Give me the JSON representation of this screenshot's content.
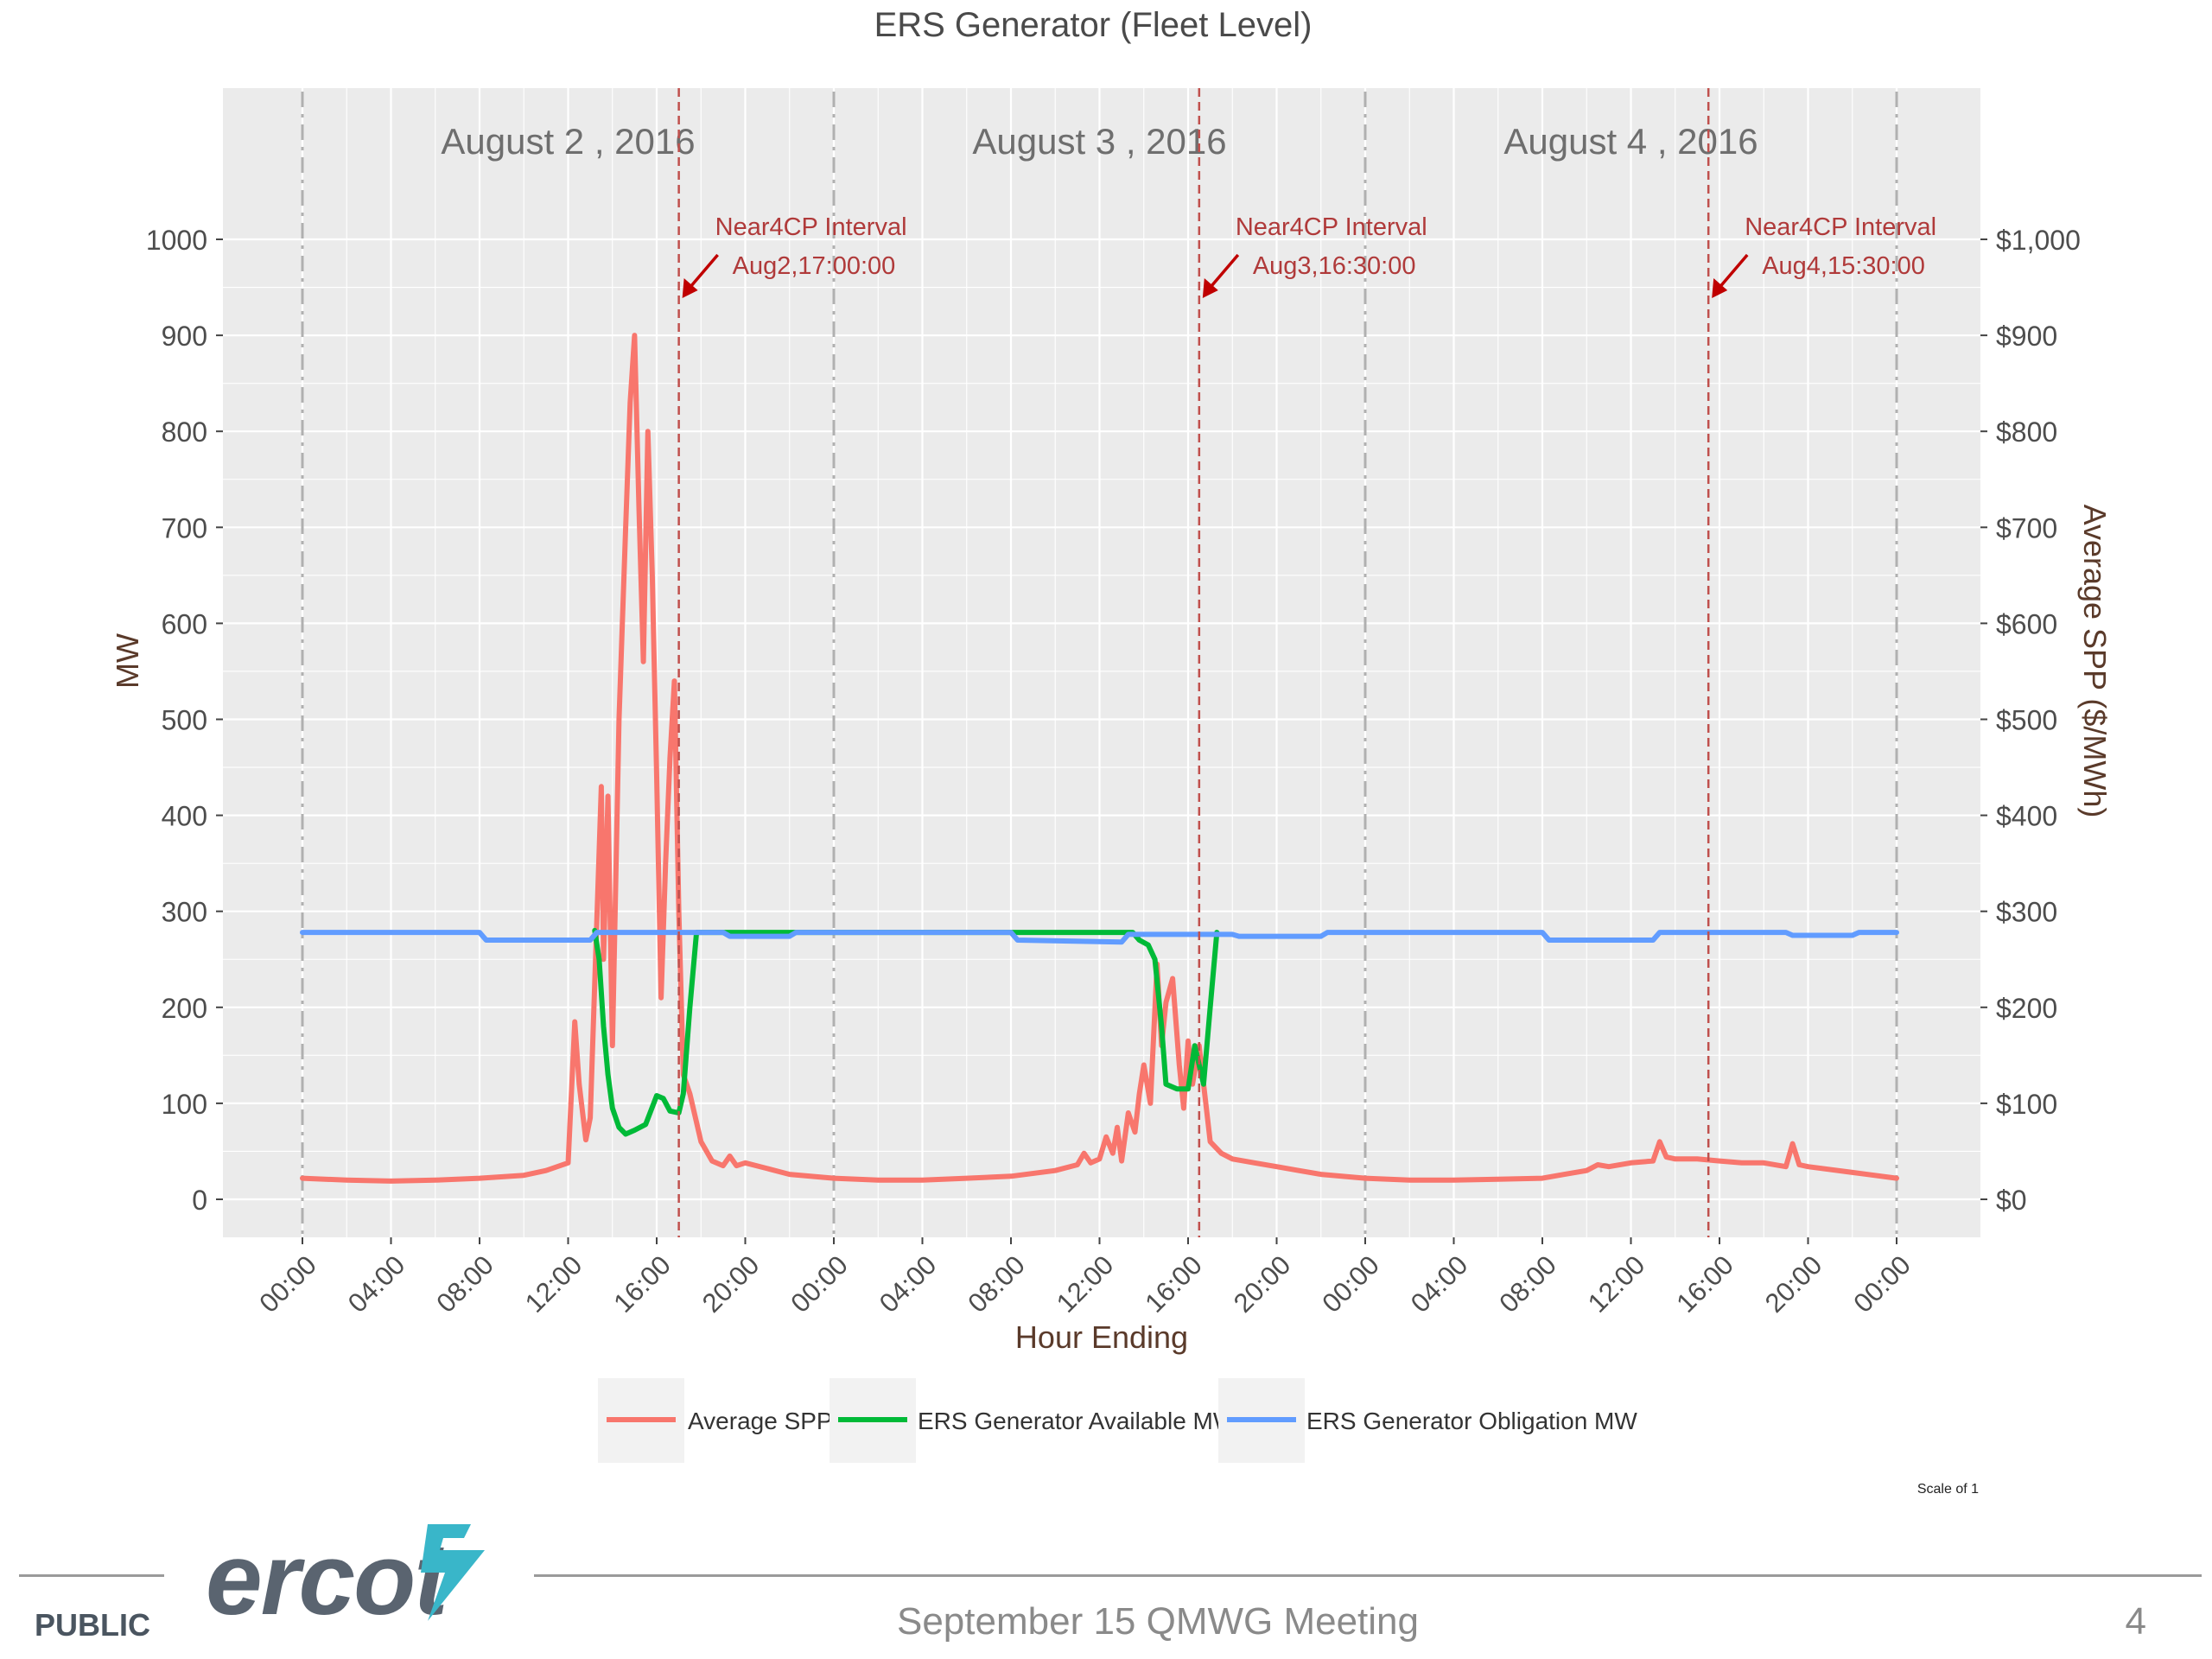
{
  "chart_data": {
    "type": "line",
    "title": "ERS Generator (Fleet Level)",
    "xlabel": "Hour Ending",
    "ylabel_left": "MW",
    "ylabel_right": "Average SPP ($/MWh)",
    "ylim": [
      0,
      1000
    ],
    "xlim_hours": [
      0,
      72
    ],
    "grid": true,
    "legend_position": "bottom",
    "x_tick_labels": [
      "00:00",
      "04:00",
      "08:00",
      "12:00",
      "16:00",
      "20:00",
      "00:00",
      "04:00",
      "08:00",
      "12:00",
      "16:00",
      "20:00",
      "00:00",
      "04:00",
      "08:00",
      "12:00",
      "16:00",
      "20:00",
      "00:00"
    ],
    "y_ticks_left": [
      "0",
      "100",
      "200",
      "300",
      "400",
      "500",
      "600",
      "700",
      "800",
      "900",
      "1000"
    ],
    "y_ticks_right": [
      "$0",
      "$100",
      "$200",
      "$300",
      "$400",
      "$500",
      "$600",
      "$700",
      "$800",
      "$900",
      "$1,000"
    ],
    "day_labels": [
      "August 2 , 2016",
      "August 3 , 2016",
      "August 4 , 2016"
    ],
    "annotations": [
      {
        "hour": 17.0,
        "line1": "Near4CP Interval",
        "line2": "Aug2,17:00:00"
      },
      {
        "hour": 40.5,
        "line1": "Near4CP Interval",
        "line2": "Aug3,16:30:00"
      },
      {
        "hour": 63.5,
        "line1": "Near4CP Interval",
        "line2": "Aug4,15:30:00"
      }
    ],
    "series": [
      {
        "name": "Average SPP",
        "color": "#f8766d",
        "points": [
          [
            0,
            22
          ],
          [
            2,
            20
          ],
          [
            4,
            19
          ],
          [
            6,
            20
          ],
          [
            8,
            22
          ],
          [
            10,
            25
          ],
          [
            11,
            30
          ],
          [
            12,
            38
          ],
          [
            12.3,
            185
          ],
          [
            12.5,
            120
          ],
          [
            12.8,
            62
          ],
          [
            13,
            85
          ],
          [
            13.5,
            430
          ],
          [
            13.6,
            250
          ],
          [
            13.8,
            420
          ],
          [
            14,
            160
          ],
          [
            14.3,
            500
          ],
          [
            14.6,
            700
          ],
          [
            14.8,
            830
          ],
          [
            15,
            900
          ],
          [
            15.2,
            720
          ],
          [
            15.4,
            560
          ],
          [
            15.6,
            800
          ],
          [
            15.8,
            650
          ],
          [
            16,
            440
          ],
          [
            16.2,
            210
          ],
          [
            16.4,
            350
          ],
          [
            16.6,
            460
          ],
          [
            16.8,
            540
          ],
          [
            17,
            300
          ],
          [
            17.2,
            130
          ],
          [
            17.5,
            110
          ],
          [
            18,
            60
          ],
          [
            18.5,
            40
          ],
          [
            19,
            35
          ],
          [
            19.3,
            45
          ],
          [
            19.6,
            35
          ],
          [
            20,
            38
          ],
          [
            21,
            32
          ],
          [
            22,
            26
          ],
          [
            24,
            22
          ],
          [
            26,
            20
          ],
          [
            28,
            20
          ],
          [
            30,
            22
          ],
          [
            32,
            24
          ],
          [
            34,
            30
          ],
          [
            35,
            36
          ],
          [
            35.3,
            48
          ],
          [
            35.6,
            38
          ],
          [
            36,
            42
          ],
          [
            36.3,
            65
          ],
          [
            36.6,
            48
          ],
          [
            36.8,
            75
          ],
          [
            37,
            40
          ],
          [
            37.3,
            90
          ],
          [
            37.6,
            70
          ],
          [
            37.8,
            110
          ],
          [
            38,
            140
          ],
          [
            38.3,
            100
          ],
          [
            38.6,
            245
          ],
          [
            38.8,
            160
          ],
          [
            39,
            205
          ],
          [
            39.3,
            230
          ],
          [
            39.6,
            140
          ],
          [
            39.8,
            95
          ],
          [
            40,
            165
          ],
          [
            40.2,
            120
          ],
          [
            40.5,
            160
          ],
          [
            40.8,
            100
          ],
          [
            41,
            60
          ],
          [
            41.5,
            48
          ],
          [
            42,
            42
          ],
          [
            43,
            38
          ],
          [
            44,
            34
          ],
          [
            45,
            30
          ],
          [
            46,
            26
          ],
          [
            48,
            22
          ],
          [
            50,
            20
          ],
          [
            52,
            20
          ],
          [
            54,
            21
          ],
          [
            56,
            22
          ],
          [
            57,
            26
          ],
          [
            58,
            30
          ],
          [
            58.5,
            36
          ],
          [
            59,
            34
          ],
          [
            60,
            38
          ],
          [
            61,
            40
          ],
          [
            61.3,
            60
          ],
          [
            61.6,
            44
          ],
          [
            62,
            42
          ],
          [
            63,
            42
          ],
          [
            64,
            40
          ],
          [
            65,
            38
          ],
          [
            66,
            38
          ],
          [
            67,
            34
          ],
          [
            67.3,
            58
          ],
          [
            67.6,
            36
          ],
          [
            68,
            34
          ],
          [
            70,
            28
          ],
          [
            72,
            22
          ]
        ]
      },
      {
        "name": "ERS Generator Available MW",
        "color": "#00ba38",
        "points": [
          [
            13.2,
            280
          ],
          [
            13.4,
            250
          ],
          [
            13.6,
            180
          ],
          [
            13.8,
            130
          ],
          [
            14,
            95
          ],
          [
            14.3,
            75
          ],
          [
            14.6,
            68
          ],
          [
            15,
            72
          ],
          [
            15.5,
            78
          ],
          [
            16,
            108
          ],
          [
            16.3,
            105
          ],
          [
            16.6,
            92
          ],
          [
            17,
            90
          ],
          [
            17.2,
            110
          ],
          [
            17.5,
            200
          ],
          [
            17.8,
            278
          ],
          [
            37.5,
            278
          ],
          [
            37.8,
            270
          ],
          [
            38.2,
            265
          ],
          [
            38.5,
            250
          ],
          [
            38.8,
            180
          ],
          [
            39,
            120
          ],
          [
            39.5,
            115
          ],
          [
            40,
            115
          ],
          [
            40.3,
            160
          ],
          [
            40.7,
            120
          ],
          [
            41,
            200
          ],
          [
            41.3,
            278
          ]
        ]
      },
      {
        "name": "ERS Generator Obligation MW",
        "color": "#619cff",
        "points": [
          [
            0,
            278
          ],
          [
            8,
            278
          ],
          [
            8.3,
            270
          ],
          [
            13,
            270
          ],
          [
            13.3,
            278
          ],
          [
            19,
            278
          ],
          [
            19.3,
            274
          ],
          [
            22,
            274
          ],
          [
            22.3,
            278
          ],
          [
            32,
            278
          ],
          [
            32.3,
            270
          ],
          [
            37,
            268
          ],
          [
            37.3,
            276
          ],
          [
            42,
            276
          ],
          [
            42.3,
            274
          ],
          [
            46,
            274
          ],
          [
            46.3,
            278
          ],
          [
            56,
            278
          ],
          [
            56.3,
            270
          ],
          [
            61,
            270
          ],
          [
            61.3,
            278
          ],
          [
            67,
            278
          ],
          [
            67.3,
            275
          ],
          [
            70,
            275
          ],
          [
            70.3,
            278
          ],
          [
            72,
            278
          ]
        ]
      }
    ]
  },
  "footer": {
    "scale_note": "Scale of 1",
    "public_label": "PUBLIC",
    "meeting": "September 15 QMWG Meeting",
    "page_number": "4",
    "logo_text": "ercot",
    "logo_bolt_color": "#39b6c9"
  }
}
